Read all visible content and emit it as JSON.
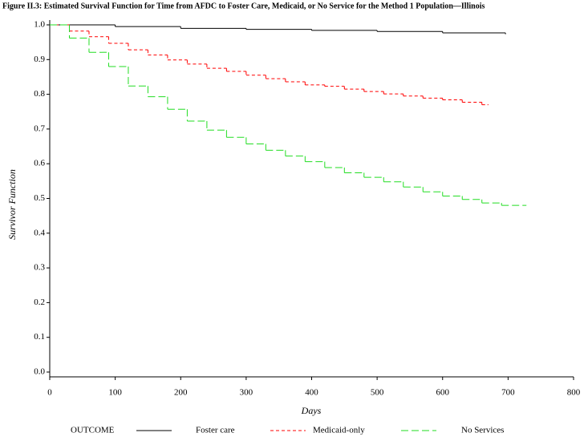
{
  "chart_data": {
    "type": "step",
    "title": "Figure II.3:  Estimated Survival Function for Time from AFDC to Foster Care, Medicaid, or No Service for the Method 1 Population—Illinois",
    "x_label": "Days",
    "y_label": "Survivor Function",
    "legend_title": "OUTCOME",
    "xlim": [
      0,
      800
    ],
    "xticks": [
      0,
      100,
      200,
      300,
      400,
      500,
      600,
      700,
      800
    ],
    "ylim": [
      0,
      1
    ],
    "yticks": [
      {
        "value": 0,
        "label": "0.0"
      },
      {
        "value": 0.1,
        "label": "0.1"
      },
      {
        "value": 0.2,
        "label": "0.2"
      },
      {
        "value": 0.3,
        "label": "0.3"
      },
      {
        "value": 0.4,
        "label": "0.4"
      },
      {
        "value": 0.5,
        "label": "0.5"
      },
      {
        "value": 0.6,
        "label": "0.6"
      },
      {
        "value": 0.7,
        "label": "0.7"
      },
      {
        "value": 0.8,
        "label": "0.8"
      },
      {
        "value": 0.9,
        "label": "0.9"
      },
      {
        "value": 1,
        "label": "1.0"
      }
    ],
    "series": [
      {
        "name": "Foster care",
        "color": "#000000",
        "dash": "none",
        "x": [
          0,
          100,
          200,
          300,
          400,
          500,
          600,
          696
        ],
        "values": [
          1.0,
          0.995,
          0.99,
          0.987,
          0.984,
          0.981,
          0.977,
          0.973
        ]
      },
      {
        "name": "Medicaid-only",
        "color": "#ff0000",
        "dash": "4,3",
        "x": [
          0,
          30,
          60,
          90,
          120,
          150,
          180,
          210,
          240,
          270,
          300,
          330,
          360,
          390,
          420,
          450,
          480,
          510,
          540,
          570,
          600,
          630,
          660,
          670
        ],
        "values": [
          1.0,
          0.982,
          0.966,
          0.947,
          0.928,
          0.913,
          0.899,
          0.887,
          0.875,
          0.866,
          0.855,
          0.845,
          0.836,
          0.827,
          0.823,
          0.815,
          0.808,
          0.801,
          0.795,
          0.789,
          0.784,
          0.777,
          0.77,
          0.77
        ]
      },
      {
        "name": "No Services",
        "color": "#22dd22",
        "dash": "9,4",
        "x": [
          0,
          30,
          60,
          90,
          120,
          150,
          180,
          210,
          240,
          270,
          300,
          330,
          360,
          390,
          420,
          450,
          480,
          510,
          540,
          570,
          600,
          630,
          660,
          690,
          728
        ],
        "values": [
          1.0,
          0.962,
          0.921,
          0.88,
          0.824,
          0.793,
          0.757,
          0.723,
          0.697,
          0.676,
          0.657,
          0.639,
          0.622,
          0.606,
          0.589,
          0.574,
          0.561,
          0.548,
          0.533,
          0.519,
          0.507,
          0.497,
          0.487,
          0.48,
          0.48
        ]
      }
    ]
  }
}
